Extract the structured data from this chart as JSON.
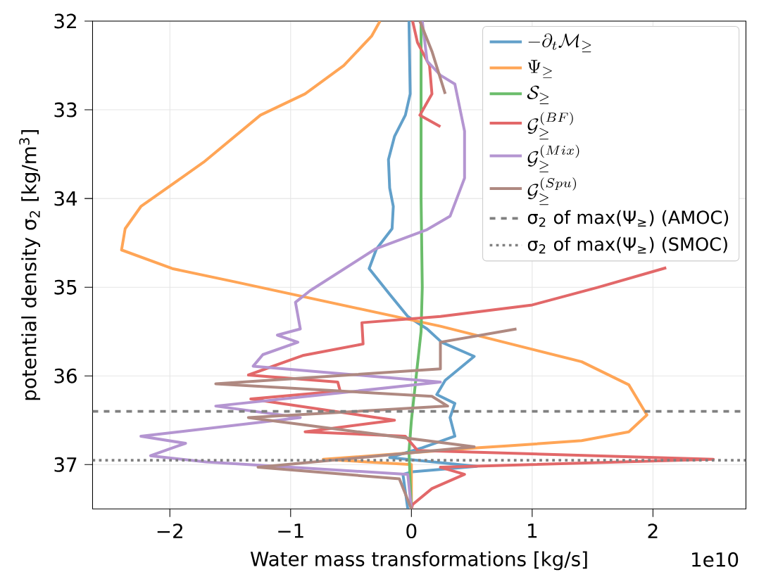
{
  "chart_data": {
    "type": "line",
    "xlabel": "Water mass transformations [kg/s]",
    "ylabel": "potential density σ$_{2}$ [kg/m$^{3}$]",
    "xlim": [
      -2.64,
      2.77
    ],
    "ylim": [
      37.5,
      32
    ],
    "xticks": [
      {
        "value": -2,
        "label": "−2"
      },
      {
        "value": -1,
        "label": "−1"
      },
      0,
      1,
      2
    ],
    "yticks": [
      32,
      33,
      34,
      35,
      36,
      37
    ],
    "grid": true,
    "legend": "top right",
    "line_style": "solid",
    "annotations": [
      "1e10"
    ],
    "series": [
      {
        "name": "-\\partial_t \\mathcal{M}_{\\geq}",
        "color": "#62a0ca",
        "x": [
          -0.02,
          -0.01,
          -0.05,
          -0.14,
          -0.19,
          -0.18,
          -0.15,
          -0.16,
          -0.29,
          -0.35,
          -0.18,
          -0.03,
          0.13,
          0.25,
          0.52,
          0.28,
          0.21,
          0.36,
          0.32,
          0.36,
          0.09,
          -0.18,
          0.54,
          0.01,
          -0.07,
          -0.03
        ],
        "values": [
          32.0,
          32.82,
          33.06,
          33.3,
          33.56,
          33.88,
          34.09,
          34.34,
          34.57,
          34.79,
          35.08,
          35.33,
          35.47,
          35.62,
          35.78,
          36.05,
          36.21,
          36.31,
          36.47,
          36.68,
          36.81,
          36.92,
          37.02,
          37.08,
          37.11,
          37.5
        ]
      },
      {
        "name": "\\Psi_{\\geq}",
        "color": "#ffa556",
        "x": [
          -0.26,
          -0.33,
          -0.56,
          -0.88,
          -1.25,
          -1.72,
          -2.24,
          -2.37,
          -2.4,
          -1.98,
          -1.46,
          0.24,
          1.41,
          1.8,
          1.95,
          1.8,
          1.41,
          0.79,
          0.56,
          -0.73,
          0.0,
          0.0
        ],
        "values": [
          32.0,
          32.17,
          32.5,
          32.82,
          33.06,
          33.59,
          34.09,
          34.34,
          34.58,
          34.79,
          34.94,
          35.44,
          35.84,
          36.1,
          36.44,
          36.63,
          36.73,
          36.79,
          36.81,
          36.94,
          37.0,
          37.5
        ]
      },
      {
        "name": "\\mathcal{S}_{\\geq}",
        "color": "#6bbd6b",
        "x": [
          0.08,
          0.08,
          0.09,
          0.08,
          0.04,
          0.0,
          -0.02,
          -0.01,
          0.0
        ],
        "values": [
          32.0,
          34.0,
          35.0,
          35.5,
          36.0,
          36.5,
          36.85,
          37.2,
          37.5
        ]
      },
      {
        "name": "\\mathcal{G}^{(BF)}_{\\geq}",
        "color": "#e26869",
        "x": [
          0.01,
          0.05,
          0.15,
          0.17,
          0.07,
          0.24,
          null,
          null,
          null,
          null,
          2.11,
          1.55,
          1.0,
          0.24,
          -0.41,
          -0.4,
          -0.9,
          -1.35,
          -0.61,
          -0.59,
          -1.33,
          -0.14,
          -0.88,
          -0.05,
          0.05,
          2.5,
          0.24,
          0.44,
          0.17,
          0.01,
          0.0
        ],
        "values": [
          32.0,
          32.24,
          32.5,
          32.82,
          33.06,
          33.19,
          null,
          null,
          null,
          null,
          34.78,
          35.0,
          35.2,
          35.33,
          35.4,
          35.64,
          35.77,
          35.99,
          36.07,
          36.17,
          36.26,
          36.5,
          36.63,
          36.68,
          36.84,
          36.94,
          37.03,
          37.11,
          37.27,
          37.45,
          37.5
        ]
      },
      {
        "name": "\\mathcal{G}^{(Mix)}_{\\geq}",
        "color": "#b495d1",
        "x": [
          0.09,
          0.13,
          0.24,
          0.36,
          0.44,
          0.44,
          0.32,
          0.13,
          -0.3,
          -0.84,
          -0.96,
          -0.92,
          -1.11,
          -0.94,
          -1.23,
          -1.31,
          0.24,
          -1.62,
          -0.92,
          -2.24,
          -1.87,
          -2.16,
          -1.7,
          -0.03,
          0.0
        ],
        "values": [
          32.0,
          32.45,
          32.61,
          32.71,
          33.24,
          33.77,
          34.2,
          34.35,
          34.57,
          35.04,
          35.17,
          35.47,
          35.54,
          35.62,
          35.76,
          35.89,
          36.07,
          36.34,
          36.47,
          36.68,
          36.76,
          36.9,
          36.97,
          37.11,
          37.5
        ]
      },
      {
        "name": "\\mathcal{G}^{(Spu)}_{\\geq}",
        "color": "#af8981",
        "x": [
          0.07,
          0.17,
          0.28,
          null,
          0.87,
          0.24,
          0.24,
          -1.62,
          0.17,
          0.3,
          -1.35,
          0.52,
          -1.27,
          -0.1,
          0.0
        ],
        "values": [
          32.0,
          32.34,
          32.82,
          null,
          35.47,
          35.62,
          35.92,
          36.09,
          36.23,
          36.34,
          36.47,
          36.8,
          37.03,
          37.16,
          37.5
        ]
      }
    ],
    "ref_lines": [
      {
        "axis": "y",
        "value": 36.4,
        "label": "σ$_{2}$ of max(Ψ$_{≥}$) (AMOC)",
        "color": "#808080",
        "line_style": "dashed"
      },
      {
        "axis": "y",
        "value": 36.95,
        "label": "σ$_{2}$ of max(Ψ$_{≥}$) (SMOC)",
        "color": "#808080",
        "line_style": "dotted"
      }
    ]
  }
}
